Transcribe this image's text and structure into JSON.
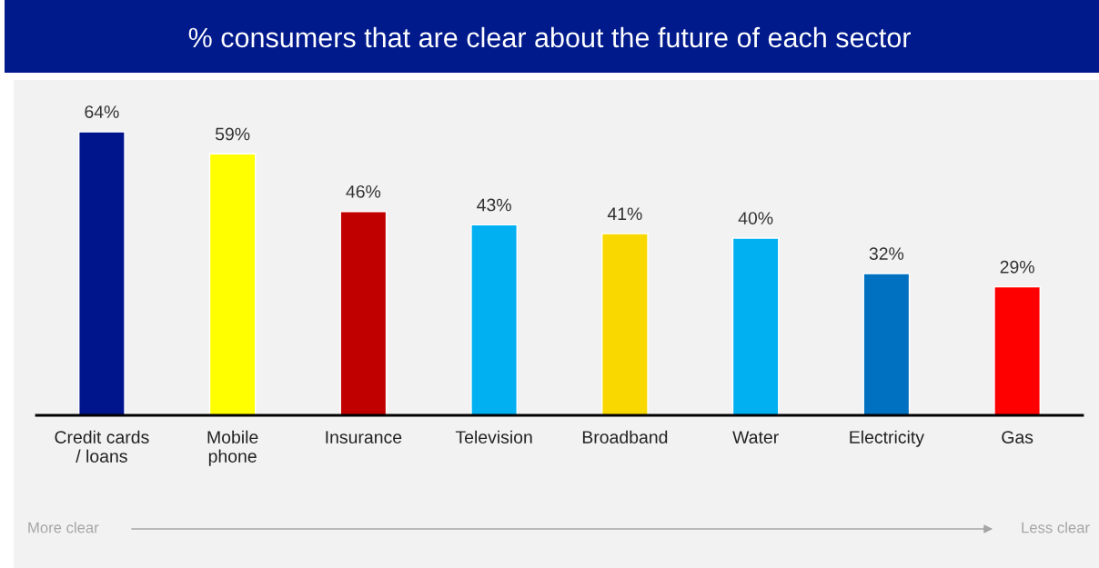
{
  "chart_data": {
    "type": "bar",
    "title": "% consumers that are clear about the future of each sector",
    "categories": [
      "Credit cards\n/ loans",
      "Mobile\nphone",
      "Insurance",
      "Television",
      "Broadband",
      "Water",
      "Electricity",
      "Gas"
    ],
    "values": [
      64,
      59,
      46,
      43,
      41,
      40,
      32,
      29
    ],
    "colors": [
      "#00148c",
      "#ffff00",
      "#c00000",
      "#00b0f0",
      "#f9d800",
      "#00b0f0",
      "#0070c0",
      "#ff0000"
    ],
    "value_labels": [
      "64%",
      "59%",
      "46%",
      "43%",
      "41%",
      "40%",
      "32%",
      "29%"
    ],
    "annotations": [
      "More clear",
      "Less clear"
    ],
    "grid": false,
    "legend": false
  }
}
